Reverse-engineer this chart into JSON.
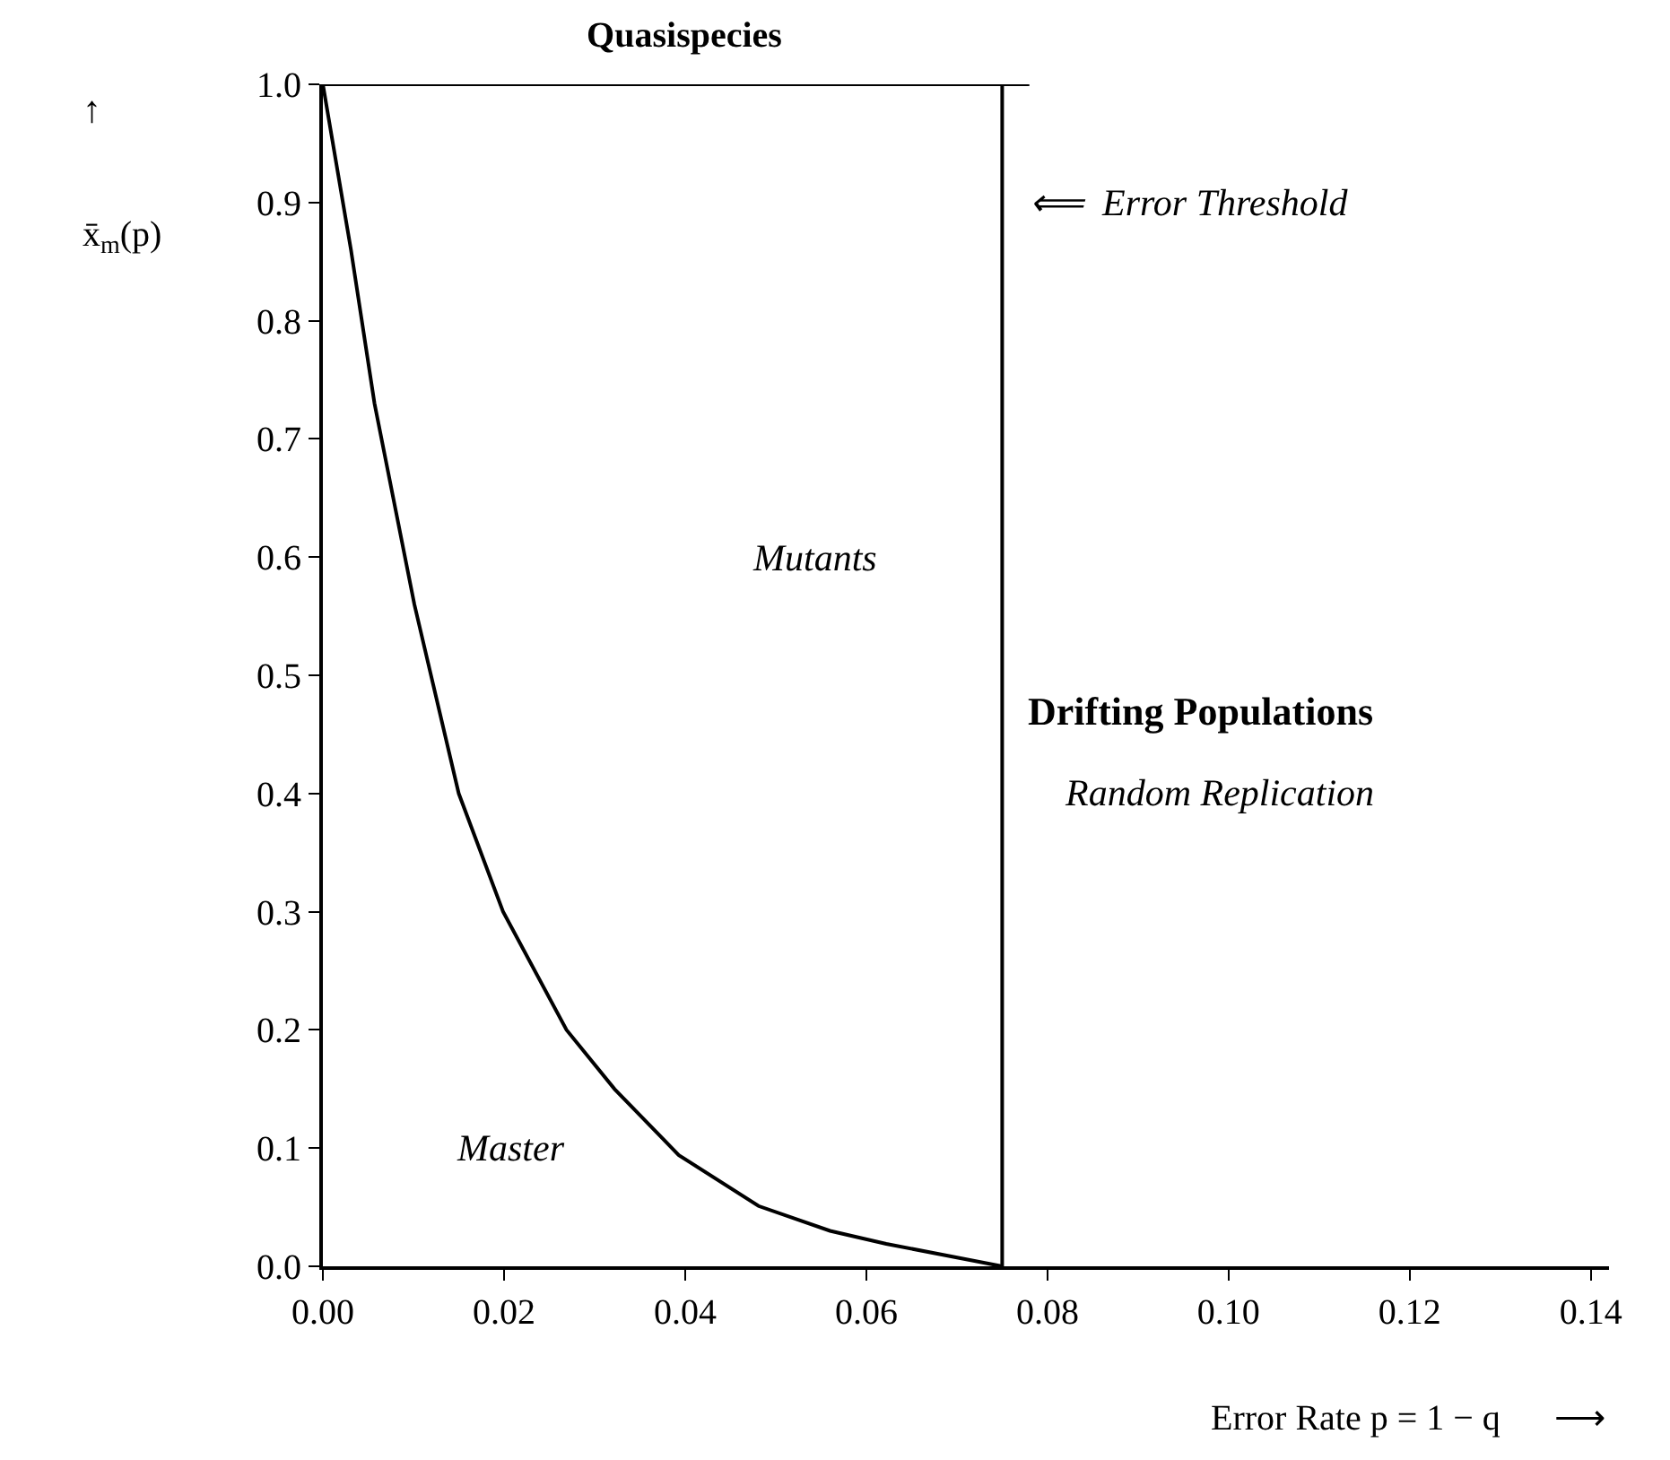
{
  "chart_data": {
    "type": "line",
    "title": "Quasispecies",
    "ylabel": "x̄$_{m}$(p)",
    "xlabel": "Error Rate p = 1 − q      ⟶",
    "x": [
      0,
      0.0031,
      0.0057,
      0.0101,
      0.015,
      0.0199,
      0.0269,
      0.0322,
      0.0393,
      0.0481,
      0.056,
      0.0622,
      0.075
    ],
    "series": [
      {
        "color": "#000000",
        "values": [
          1.0,
          0.86,
          0.73,
          0.56,
          0.4,
          0.3,
          0.2,
          0.15,
          0.094,
          0.051,
          0.03,
          0.019,
          0.0
        ]
      },
      {
        "color": "#000000",
        "x": [
          0,
          0.078
        ],
        "values": [
          1.0,
          1.0
        ]
      }
    ],
    "ref_lines": [
      {
        "axis": "x",
        "value": 0.075,
        "color": "#000000",
        "line_style": "solid"
      }
    ],
    "annotations": [
      "↑",
      "⟸  Error Threshold",
      "Mutants",
      "Master",
      "Drifting Populations",
      "Random Replication"
    ],
    "xlim": [
      0,
      0.142
    ],
    "ylim": [
      0,
      1.0
    ],
    "xticks": [
      {
        "value": 0,
        "label": "0.00"
      },
      {
        "value": 0.02,
        "label": "0.02"
      },
      {
        "value": 0.04,
        "label": "0.04"
      },
      {
        "value": 0.06,
        "label": "0.06"
      },
      {
        "value": 0.08,
        "label": "0.08"
      },
      {
        "value": 0.1,
        "label": "0.10"
      },
      {
        "value": 0.12,
        "label": "0.12"
      },
      {
        "value": 0.14,
        "label": "0.14"
      }
    ],
    "yticks": [
      {
        "value": 0,
        "label": "0.0"
      },
      0.1,
      0.2,
      0.3,
      0.4,
      0.5,
      0.6,
      0.7,
      0.8,
      0.9,
      {
        "value": 1,
        "label": "1.0"
      }
    ],
    "marker": "none",
    "line_style": "solid"
  }
}
